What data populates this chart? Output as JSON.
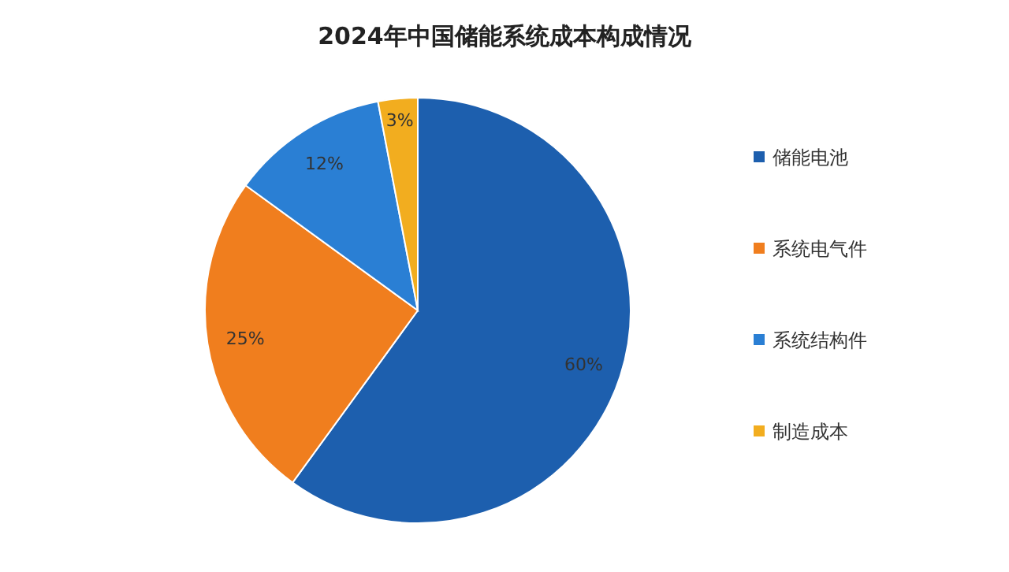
{
  "chart_data": {
    "type": "pie",
    "title": "2024年中国储能系统成本构成情况",
    "categories": [
      "储能电池",
      "系统电气件",
      "系统结构件",
      "制造成本"
    ],
    "values": [
      60,
      25,
      12,
      3
    ],
    "colors": [
      "#1d5fae",
      "#f07e1e",
      "#2a7fd4",
      "#f2ad1f"
    ],
    "value_labels": [
      "60%",
      "25%",
      "12%",
      "3%"
    ],
    "legend": "right"
  }
}
